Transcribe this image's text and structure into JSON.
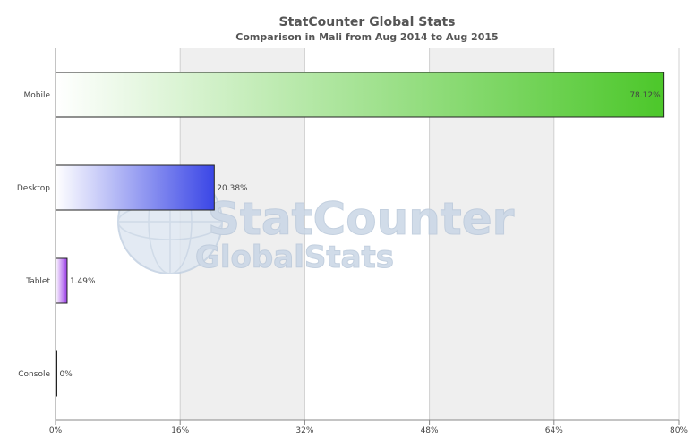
{
  "watermark": {
    "line1": "StatCounter",
    "line2": "GlobalStats"
  },
  "chart_data": {
    "type": "bar",
    "orientation": "horizontal",
    "title": "StatCounter Global Stats",
    "subtitle": "Comparison in Mali from Aug 2014 to Aug 2015",
    "categories": [
      "Mobile",
      "Desktop",
      "Tablet",
      "Console"
    ],
    "values": [
      78.12,
      20.38,
      1.49,
      0
    ],
    "value_labels": [
      "78.12%",
      "20.38%",
      "1.49%",
      "0%"
    ],
    "xlim": [
      0,
      80
    ],
    "x_ticks": [
      0,
      16,
      32,
      48,
      64,
      80
    ],
    "x_tick_labels": [
      "0%",
      "16%",
      "32%",
      "48%",
      "64%",
      "80%"
    ],
    "grid": true,
    "alternating_bands": true,
    "colors": {
      "Mobile": "#4cc72a",
      "Desktop": "#3a46e6",
      "Tablet": "#9b3de8",
      "Console": "#222222",
      "band": "#efefef",
      "gridline": "#d0d0d0"
    }
  }
}
